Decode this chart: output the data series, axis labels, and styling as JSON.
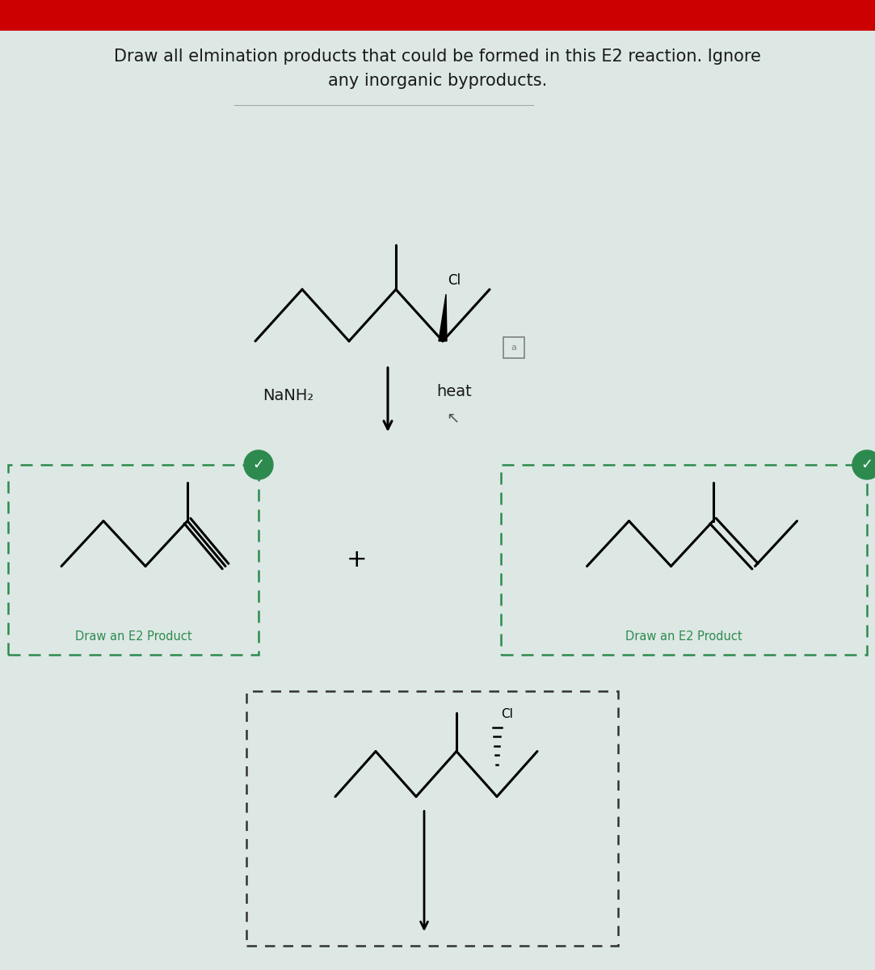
{
  "title_line1": "Draw all elmination products that could be formed in this E2 reaction. Ignore",
  "title_line2": "any inorganic byproducts.",
  "reagent": "NaNH₂",
  "condition": "heat",
  "label_product": "Draw an E2 Product",
  "bg_color": "#dde8e4",
  "header_color": "#cc0000",
  "dashed_box_color_green": "#2d8a4e",
  "dashed_box_color_black": "#333333",
  "text_color": "#1a1a1a",
  "check_color": "#2d8a4e",
  "figw": 10.83,
  "figh": 12.0
}
